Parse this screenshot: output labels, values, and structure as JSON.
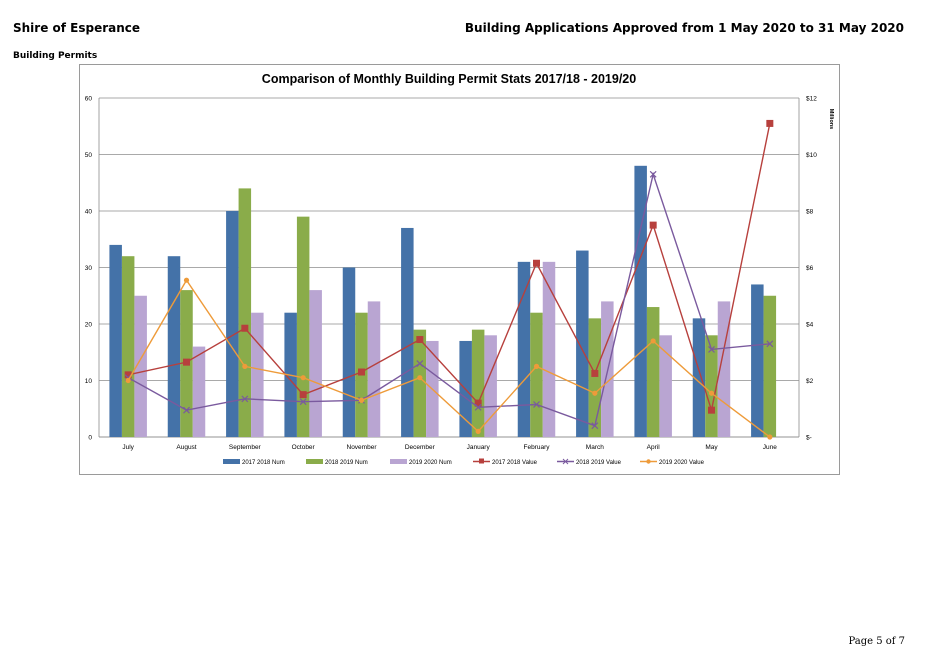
{
  "header": {
    "organisation": "Shire of Esperance",
    "report_title": "Building Applications Approved from 1 May 2020 to 31 May 2020",
    "section": "Building Permits"
  },
  "footer": {
    "page": "Page 5 of 7"
  },
  "chart_data": {
    "type": "bar",
    "title": "Comparison of Monthly Building Permit Stats 2017/18 - 2019/20",
    "categories": [
      "July",
      "August",
      "September",
      "October",
      "November",
      "December",
      "January",
      "February",
      "March",
      "April",
      "May",
      "June"
    ],
    "y_left": {
      "min": 0,
      "max": 60,
      "ticks": [
        "0",
        "10",
        "20",
        "30",
        "40",
        "50",
        "60"
      ]
    },
    "y_right": {
      "min": 0,
      "max": 12,
      "label": "Millions",
      "ticks": [
        "$-",
        "$2",
        "$4",
        "$6",
        "$8",
        "$10",
        "$12"
      ]
    },
    "grid": true,
    "legend_position": "bottom",
    "series": [
      {
        "name": "2017 2018 Num",
        "type": "bar",
        "axis": "left",
        "color": "#4472a8",
        "values": [
          34,
          32,
          40,
          22,
          30,
          37,
          17,
          31,
          33,
          48,
          21,
          27
        ]
      },
      {
        "name": "2018 2019 Num",
        "type": "bar",
        "axis": "left",
        "color": "#8aac4a",
        "values": [
          32,
          26,
          44,
          39,
          22,
          19,
          19,
          22,
          21,
          23,
          18,
          25
        ]
      },
      {
        "name": "2019 2020 Num",
        "type": "bar",
        "axis": "left",
        "color": "#b9a5d2",
        "values": [
          25,
          16,
          22,
          26,
          24,
          17,
          18,
          31,
          24,
          18,
          24,
          null
        ]
      },
      {
        "name": "2017 2018 Value",
        "type": "line",
        "axis": "right",
        "color": "#b7403d",
        "marker": "square",
        "values": [
          2.2,
          2.65,
          3.85,
          1.5,
          2.3,
          3.45,
          1.2,
          6.15,
          2.25,
          7.5,
          0.95,
          11.1
        ]
      },
      {
        "name": "2018 2019 Value",
        "type": "line",
        "axis": "right",
        "color": "#7a5a9e",
        "marker": "cross",
        "values": [
          2.1,
          0.95,
          1.35,
          1.25,
          1.3,
          2.6,
          1.05,
          1.15,
          0.4,
          9.3,
          3.1,
          3.3
        ]
      },
      {
        "name": "2019 2020 Value",
        "type": "line",
        "axis": "right",
        "color": "#ee9b3a",
        "marker": "circle",
        "values": [
          2.0,
          5.55,
          2.5,
          2.1,
          1.3,
          2.1,
          0.2,
          2.5,
          1.55,
          3.4,
          1.55,
          0.0
        ]
      }
    ]
  }
}
